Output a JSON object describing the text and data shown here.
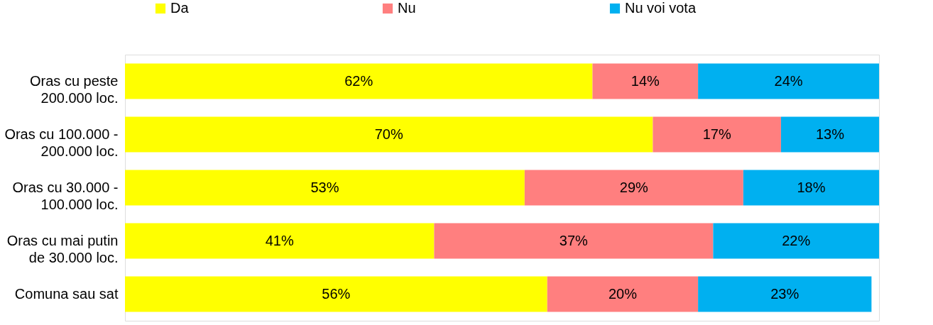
{
  "chart_data": {
    "type": "bar",
    "orientation": "horizontal",
    "stacked": true,
    "legend": "top",
    "categories": [
      "Oras cu peste 200.000 loc.",
      "Oras cu 100.000 - 200.000 loc.",
      "Oras cu 30.000 - 100.000 loc.",
      "Oras cu mai putin de 30.000 loc.",
      "Comuna sau sat"
    ],
    "series": [
      {
        "name": "Da",
        "color": "#ffff00",
        "values": [
          62,
          70,
          53,
          41,
          56
        ],
        "value_labels": [
          "62%",
          "70%",
          "53%",
          "41%",
          "56%"
        ]
      },
      {
        "name": "Nu",
        "color": "#ff7f7f",
        "values": [
          14,
          17,
          29,
          37,
          20
        ],
        "value_labels": [
          "14%",
          "17%",
          "29%",
          "37%",
          "20%"
        ]
      },
      {
        "name": "Nu voi vota",
        "color": "#00b0f0",
        "values": [
          24,
          13,
          18,
          22,
          23
        ],
        "value_labels": [
          "24%",
          "13%",
          "18%",
          "22%",
          "23%"
        ]
      }
    ]
  }
}
